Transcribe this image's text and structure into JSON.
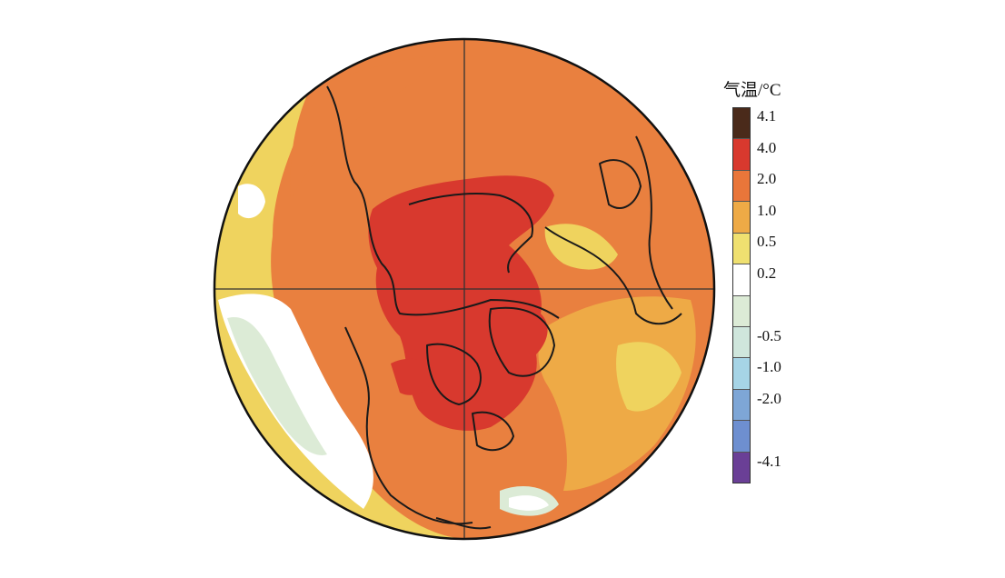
{
  "map": {
    "projection": "orthographic-polar",
    "legend": {
      "title": "气温/°C",
      "segments": [
        {
          "label": "4.1",
          "color": "#4a2a1a"
        },
        {
          "label": "4.0",
          "color": "#d8392e"
        },
        {
          "label": "2.0",
          "color": "#e9763a"
        },
        {
          "label": "1.0",
          "color": "#eeaa46"
        },
        {
          "label": "0.5",
          "color": "#efe070"
        },
        {
          "label": "0.2",
          "color": "#ffffff"
        },
        {
          "label": "",
          "color": "#dcebd6"
        },
        {
          "label": "-0.5",
          "color": "#cfe6dc"
        },
        {
          "label": "-1.0",
          "color": "#a6d4e6"
        },
        {
          "label": "-2.0",
          "color": "#7ea6d6"
        },
        {
          "label": "",
          "color": "#6e8fd0"
        },
        {
          "label": "-4.1",
          "color": "#6a3f96"
        }
      ]
    }
  }
}
